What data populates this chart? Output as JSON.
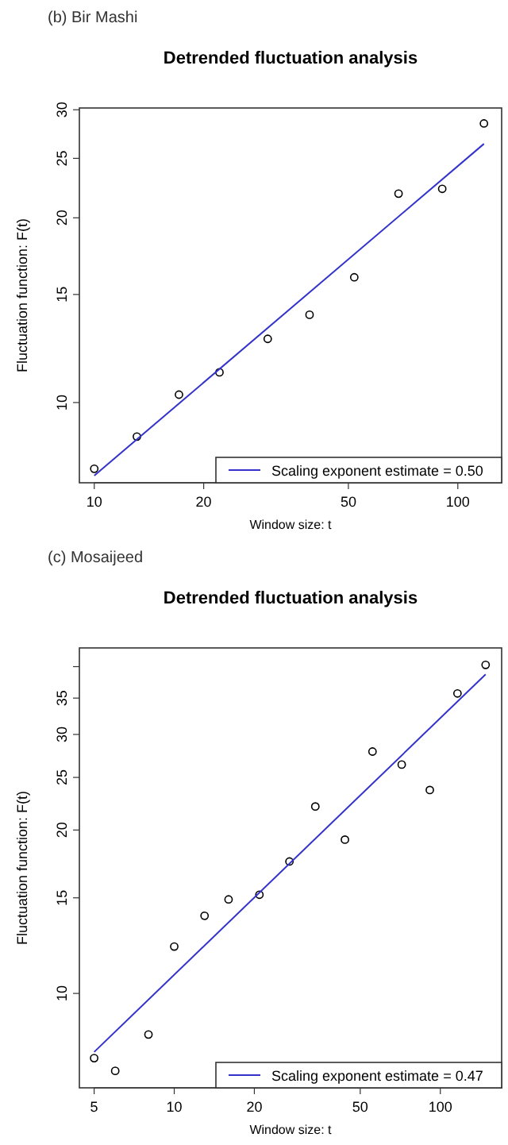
{
  "chart_data": [
    {
      "type": "scatter",
      "annotations": [
        "(b) Bir Mashi"
      ],
      "title": "Detrended fluctuation analysis",
      "xlabel": "Window size: t",
      "ylabel": "Fluctuation function: F(t)",
      "log": "xy",
      "grid": false,
      "legend": "bottom right",
      "marker": "circle",
      "xlim": [
        9.1,
        132
      ],
      "ylim": [
        7.4,
        30.2
      ],
      "xticks": [
        10,
        20,
        50,
        100
      ],
      "yticks": [
        10,
        15,
        20,
        25,
        30
      ],
      "x": [
        10,
        13.1,
        17.1,
        22.1,
        30,
        39.1,
        51.9,
        68.7,
        90.6,
        118
      ],
      "series": [
        {
          "color": "#000000",
          "values": [
            7.8,
            8.8,
            10.3,
            11.2,
            12.7,
            13.9,
            16.0,
            21.9,
            22.3,
            28.5
          ]
        },
        {
          "type": "line",
          "marker": "none",
          "name": "Scaling exponent estimate = 0.50",
          "color": "#3333cc",
          "x": [
            10,
            118
          ],
          "values": [
            7.6,
            26.4
          ]
        }
      ]
    },
    {
      "type": "scatter",
      "annotations": [
        "(c) Mosaijeed"
      ],
      "title": "Detrended fluctuation analysis",
      "xlabel": "Window size: t",
      "ylabel": "Fluctuation function: F(t)",
      "log": "xy",
      "grid": false,
      "legend": "bottom right",
      "marker": "circle",
      "xlim": [
        4.4,
        170
      ],
      "ylim": [
        6.7,
        43.3
      ],
      "xticks": [
        5,
        10,
        20,
        50,
        100
      ],
      "yticks": [
        10,
        15,
        20,
        25,
        30,
        35,
        {
          "value": 40,
          "label": null
        }
      ],
      "x": [
        5,
        6,
        8,
        10,
        13,
        16,
        20.9,
        27.1,
        33.9,
        43.8,
        55.6,
        71.6,
        91.3,
        116,
        148
      ],
      "series": [
        {
          "color": "#000000",
          "values": [
            7.6,
            7.2,
            8.4,
            12.2,
            13.9,
            14.9,
            15.2,
            17.5,
            22.1,
            19.2,
            27.9,
            26.4,
            23.7,
            35.7,
            40.3
          ]
        },
        {
          "type": "line",
          "marker": "none",
          "name": "Scaling exponent estimate = 0.47",
          "color": "#3333cc",
          "x": [
            5,
            148
          ],
          "values": [
            7.8,
            38.7
          ]
        }
      ]
    }
  ]
}
